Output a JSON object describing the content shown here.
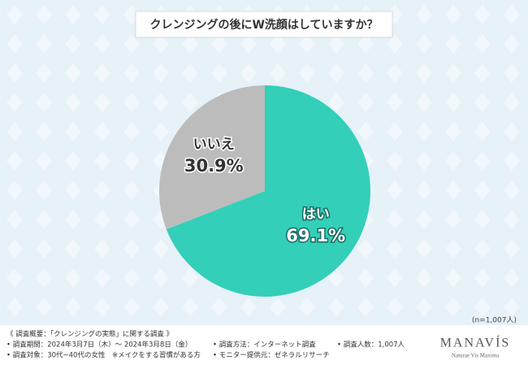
{
  "chart_data": {
    "type": "pie",
    "title": "クレンジングの後にW洗顔はしていますか？",
    "categories": [
      "はい",
      "いいえ"
    ],
    "values": [
      69.1,
      30.9
    ],
    "value_labels": [
      "69.1%",
      "30.9%"
    ],
    "colors": [
      "#33cfb8",
      "#bcbcbc"
    ],
    "sample_note": "(n=1,007人)"
  },
  "footer": {
    "survey_lines": [
      "《 調査概要：「クレンジングの実態」に関する調査 》",
      "• 調査期間：2024年3月7日（木）～ 2024年3月8日（金）",
      "• 調査対象：30代~40代の女性　※メイクをする習慣がある方",
      "• 調査方法：インターネット調査",
      "• モニター提供元：ゼネラルリサーチ",
      "• 調査人数：1,007人"
    ],
    "logo": "MANAVÍS",
    "tagline": "Naturae Vis Maxima"
  }
}
